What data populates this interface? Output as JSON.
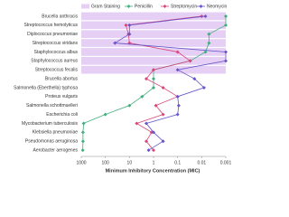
{
  "chart_data": {
    "type": "line",
    "orientation": "horizontal",
    "x_label": "Minimum Inhibitory Concentration (MIC)",
    "categories": [
      "Brucella anthracis",
      "Streptococcus hemolyticus",
      "Diplococcus pneumoniae",
      "Streptococcus viridans",
      "Staphylococcus albus",
      "Staphylococcus aureus",
      "Streptococcus fecalis",
      "Brucella abortus",
      "Salmonella (Eberthella) typhosa",
      "Proteus vulgaris",
      "Salmonella schottmuelleri",
      "Escherichia coli",
      "Mycobacterium tuberculosis",
      "Klebsiella pneumoniae",
      "Pseudomonas aeruginosa",
      "Aerobacter aerogenes"
    ],
    "highlight": {
      "name": "Gram Staining",
      "color": "#e5cff5",
      "rows": [
        true,
        true,
        true,
        true,
        true,
        true,
        true,
        false,
        false,
        false,
        false,
        false,
        false,
        false,
        false,
        false
      ]
    },
    "series": [
      {
        "name": "Penicillin",
        "color": "#3fae7a",
        "values": [
          0.001,
          0.001,
          0.005,
          0.005,
          0.007,
          0.03,
          1,
          1,
          1,
          3,
          10,
          100,
          800,
          850,
          850,
          870
        ]
      },
      {
        "name": "Streptomycin",
        "color": "#d9457a",
        "values": [
          0.01,
          14,
          11,
          10,
          0.1,
          0.03,
          1,
          2,
          0.4,
          0.1,
          0.8,
          0.4,
          5,
          1.2,
          2,
          1
        ]
      },
      {
        "name": "Neomycin",
        "color": "#6655c8",
        "values": [
          0.007,
          10,
          10,
          40,
          0.001,
          0.001,
          0.1,
          0.02,
          0.008,
          0.1,
          0.09,
          0.1,
          2,
          1,
          0.4,
          1.6
        ]
      }
    ],
    "xscale": "log",
    "xlim": [
      1000,
      0.001
    ],
    "xticks": [
      1000,
      100,
      10,
      1,
      0.1,
      0.01,
      0.001
    ]
  }
}
